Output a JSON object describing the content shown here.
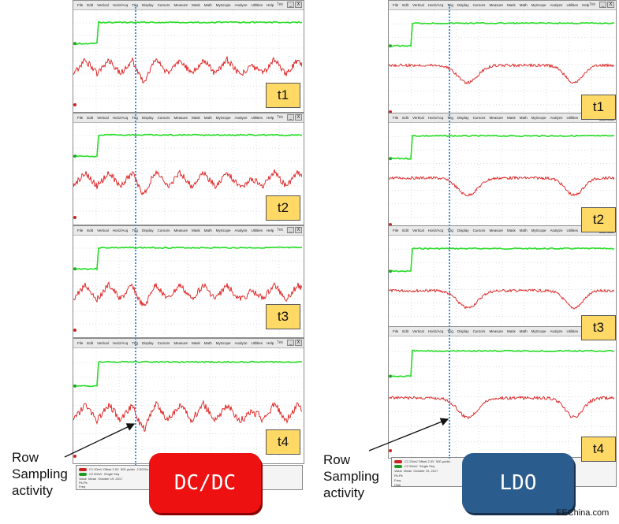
{
  "menu_items": [
    "File",
    "Edit",
    "Vertical",
    "Horiz/Acq",
    "Trig",
    "Display",
    "Cursors",
    "Measure",
    "Mask",
    "Math",
    "MyScope",
    "Analyze",
    "Utilities",
    "Help"
  ],
  "scope_brand": "Tek",
  "window_buttons": [
    "_",
    "X"
  ],
  "tags": [
    "t1",
    "t2",
    "t3",
    "t4"
  ],
  "dcdc_label": "DC/DC",
  "ldo_label": "LDO",
  "caption": [
    "Row",
    "Sampling",
    "activity"
  ],
  "watermark": "EEChina.com",
  "readout": {
    "ch1": "C1 20mV  Offset 2.0V",
    "ch2": "C2 50mV",
    "timebase": "500 µs/div",
    "rate": "2.5GS/s",
    "mode": "Single Seq",
    "date": "October 19, 2017",
    "stats_header": [
      "Value",
      "Mean"
    ],
    "rows": [
      "Pk-Pk",
      "Freq",
      "High"
    ]
  },
  "colors": {
    "green_trace": "#22dd22",
    "red_trace": "#dd1a1a",
    "sampling_line": "#3c8fe0",
    "tag_fill": "#ffd966"
  },
  "chart_data": {
    "type": "line",
    "panels": [
      "DC/DC t1",
      "DC/DC t2",
      "DC/DC t3",
      "DC/DC t4",
      "LDO t1",
      "LDO t2",
      "LDO t3",
      "LDO t4"
    ],
    "series": [
      {
        "name": "green trigger trace",
        "shape": "step: low, then high after rising edge"
      },
      {
        "name": "red supply ripple",
        "shape_dcdc": "noisy triangular ripple",
        "shape_ldo": "flat with two broad dips"
      }
    ]
  }
}
